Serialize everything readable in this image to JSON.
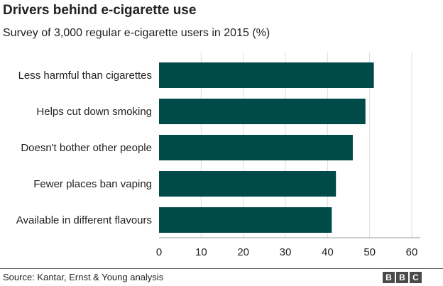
{
  "header": {
    "title": "Drivers behind e-cigarette use",
    "subtitle": "Survey of 3,000 regular e-cigarette users in 2015 (%)"
  },
  "footer": {
    "source": "Source: Kantar, Ernst & Young analysis",
    "logo_letters": [
      "B",
      "B",
      "C"
    ]
  },
  "colors": {
    "bar": "#004a4a",
    "grid": "#dddddd",
    "text": "#222222"
  },
  "chart_data": {
    "type": "bar",
    "orientation": "horizontal",
    "categories": [
      "Less harmful than cigarettes",
      "Helps cut down smoking",
      "Doesn't bother other people",
      "Fewer places ban vaping",
      "Available in different flavours"
    ],
    "values": [
      51,
      49,
      46,
      42,
      41
    ],
    "title": "Drivers behind e-cigarette use",
    "subtitle": "Survey of 3,000 regular e-cigarette users in 2015 (%)",
    "xlim": [
      0,
      60
    ],
    "xticks": [
      0,
      10,
      20,
      30,
      40,
      50,
      60
    ],
    "grid": true
  }
}
